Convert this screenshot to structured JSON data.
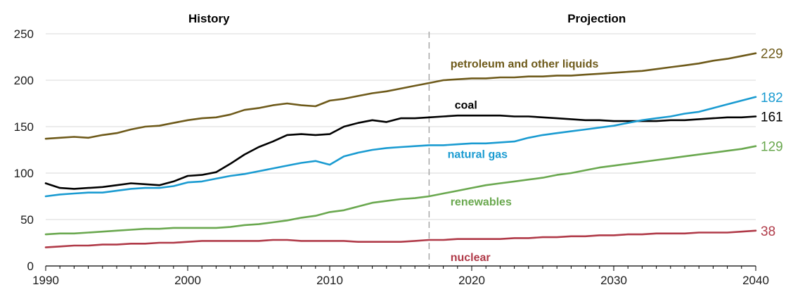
{
  "chart_data": {
    "type": "line",
    "title": "",
    "xlabel": "",
    "ylabel": "",
    "xlim": [
      1990,
      2040
    ],
    "ylim": [
      0,
      250
    ],
    "x_ticks": [
      1990,
      2000,
      2010,
      2020,
      2030,
      2040
    ],
    "y_ticks": [
      0,
      50,
      100,
      150,
      200,
      250
    ],
    "grid": "horizontal",
    "divider_year": 2017,
    "sections": {
      "history": "History",
      "projection": "Projection"
    },
    "series": [
      {
        "name": "petroleum and other liquids",
        "color": "#6e5a1a",
        "end_label": "229",
        "x": [
          1990,
          1991,
          1992,
          1993,
          1994,
          1995,
          1996,
          1997,
          1998,
          1999,
          2000,
          2001,
          2002,
          2003,
          2004,
          2005,
          2006,
          2007,
          2008,
          2009,
          2010,
          2011,
          2012,
          2013,
          2014,
          2015,
          2016,
          2017,
          2018,
          2019,
          2020,
          2021,
          2022,
          2023,
          2024,
          2025,
          2026,
          2027,
          2028,
          2029,
          2030,
          2031,
          2032,
          2033,
          2034,
          2035,
          2036,
          2037,
          2038,
          2039,
          2040
        ],
        "values": [
          137,
          138,
          139,
          138,
          141,
          143,
          147,
          150,
          151,
          154,
          157,
          159,
          160,
          163,
          168,
          170,
          173,
          175,
          173,
          172,
          178,
          180,
          183,
          186,
          188,
          191,
          194,
          197,
          200,
          201,
          202,
          202,
          203,
          203,
          204,
          204,
          205,
          205,
          206,
          207,
          208,
          209,
          210,
          212,
          214,
          216,
          218,
          221,
          223,
          226,
          229
        ]
      },
      {
        "name": "coal",
        "color": "#000000",
        "end_label": "161",
        "x": [
          1990,
          1991,
          1992,
          1993,
          1994,
          1995,
          1996,
          1997,
          1998,
          1999,
          2000,
          2001,
          2002,
          2003,
          2004,
          2005,
          2006,
          2007,
          2008,
          2009,
          2010,
          2011,
          2012,
          2013,
          2014,
          2015,
          2016,
          2017,
          2018,
          2019,
          2020,
          2021,
          2022,
          2023,
          2024,
          2025,
          2026,
          2027,
          2028,
          2029,
          2030,
          2031,
          2032,
          2033,
          2034,
          2035,
          2036,
          2037,
          2038,
          2039,
          2040
        ],
        "values": [
          89,
          84,
          83,
          84,
          85,
          87,
          89,
          88,
          87,
          91,
          97,
          98,
          101,
          110,
          120,
          128,
          134,
          141,
          142,
          141,
          142,
          150,
          154,
          157,
          155,
          159,
          159,
          160,
          161,
          162,
          162,
          162,
          162,
          161,
          161,
          160,
          159,
          158,
          157,
          157,
          156,
          156,
          156,
          156,
          157,
          157,
          158,
          159,
          160,
          160,
          161
        ]
      },
      {
        "name": "natural gas",
        "color": "#1a9bd1",
        "end_label": "182",
        "x": [
          1990,
          1991,
          1992,
          1993,
          1994,
          1995,
          1996,
          1997,
          1998,
          1999,
          2000,
          2001,
          2002,
          2003,
          2004,
          2005,
          2006,
          2007,
          2008,
          2009,
          2010,
          2011,
          2012,
          2013,
          2014,
          2015,
          2016,
          2017,
          2018,
          2019,
          2020,
          2021,
          2022,
          2023,
          2024,
          2025,
          2026,
          2027,
          2028,
          2029,
          2030,
          2031,
          2032,
          2033,
          2034,
          2035,
          2036,
          2037,
          2038,
          2039,
          2040
        ],
        "values": [
          75,
          77,
          78,
          79,
          79,
          81,
          83,
          84,
          84,
          86,
          90,
          91,
          94,
          97,
          99,
          102,
          105,
          108,
          111,
          113,
          109,
          118,
          122,
          125,
          127,
          128,
          129,
          130,
          130,
          131,
          132,
          132,
          133,
          134,
          138,
          141,
          143,
          145,
          147,
          149,
          151,
          154,
          157,
          159,
          161,
          164,
          166,
          170,
          174,
          178,
          182
        ]
      },
      {
        "name": "renewables",
        "color": "#6aa84f",
        "end_label": "129",
        "x": [
          1990,
          1991,
          1992,
          1993,
          1994,
          1995,
          1996,
          1997,
          1998,
          1999,
          2000,
          2001,
          2002,
          2003,
          2004,
          2005,
          2006,
          2007,
          2008,
          2009,
          2010,
          2011,
          2012,
          2013,
          2014,
          2015,
          2016,
          2017,
          2018,
          2019,
          2020,
          2021,
          2022,
          2023,
          2024,
          2025,
          2026,
          2027,
          2028,
          2029,
          2030,
          2031,
          2032,
          2033,
          2034,
          2035,
          2036,
          2037,
          2038,
          2039,
          2040
        ],
        "values": [
          34,
          35,
          35,
          36,
          37,
          38,
          39,
          40,
          40,
          41,
          41,
          41,
          41,
          42,
          44,
          45,
          47,
          49,
          52,
          54,
          58,
          60,
          64,
          68,
          70,
          72,
          73,
          75,
          78,
          81,
          84,
          87,
          89,
          91,
          93,
          95,
          98,
          100,
          103,
          106,
          108,
          110,
          112,
          114,
          116,
          118,
          120,
          122,
          124,
          126,
          129
        ]
      },
      {
        "name": "nuclear",
        "color": "#b03a48",
        "end_label": "38",
        "x": [
          1990,
          1991,
          1992,
          1993,
          1994,
          1995,
          1996,
          1997,
          1998,
          1999,
          2000,
          2001,
          2002,
          2003,
          2004,
          2005,
          2006,
          2007,
          2008,
          2009,
          2010,
          2011,
          2012,
          2013,
          2014,
          2015,
          2016,
          2017,
          2018,
          2019,
          2020,
          2021,
          2022,
          2023,
          2024,
          2025,
          2026,
          2027,
          2028,
          2029,
          2030,
          2031,
          2032,
          2033,
          2034,
          2035,
          2036,
          2037,
          2038,
          2039,
          2040
        ],
        "values": [
          20,
          21,
          22,
          22,
          23,
          23,
          24,
          24,
          25,
          25,
          26,
          27,
          27,
          27,
          27,
          27,
          28,
          28,
          27,
          27,
          27,
          27,
          26,
          26,
          26,
          26,
          27,
          28,
          28,
          29,
          29,
          29,
          29,
          30,
          30,
          31,
          31,
          32,
          32,
          33,
          33,
          34,
          34,
          35,
          35,
          35,
          36,
          36,
          36,
          37,
          38
        ]
      }
    ]
  }
}
